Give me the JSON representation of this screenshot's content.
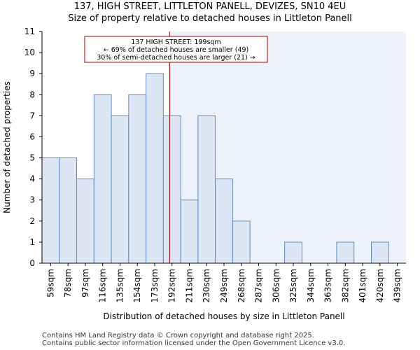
{
  "chart_data": {
    "type": "bar",
    "title": "137, HIGH STREET, LITTLETON PANELL, DEVIZES, SN10 4EU",
    "subtitle": "Size of property relative to detached houses in Littleton Panell",
    "xlabel": "Distribution of detached houses by size in Littleton Panell",
    "ylabel": "Number of detached properties",
    "ylim": [
      0,
      11
    ],
    "yticks": [
      0,
      1,
      2,
      3,
      4,
      5,
      6,
      7,
      8,
      9,
      10,
      11
    ],
    "categories": [
      "59sqm",
      "78sqm",
      "97sqm",
      "116sqm",
      "135sqm",
      "154sqm",
      "173sqm",
      "192sqm",
      "211sqm",
      "230sqm",
      "249sqm",
      "268sqm",
      "287sqm",
      "306sqm",
      "325sqm",
      "344sqm",
      "363sqm",
      "382sqm",
      "401sqm",
      "420sqm",
      "439sqm"
    ],
    "values": [
      5,
      5,
      4,
      8,
      7,
      8,
      9,
      7,
      3,
      7,
      4,
      2,
      0,
      0,
      1,
      0,
      0,
      1,
      0,
      1,
      0
    ],
    "bin_edges_sqm": [
      59,
      78,
      97,
      116,
      135,
      154,
      173,
      192,
      211,
      230,
      249,
      268,
      287,
      306,
      325,
      344,
      363,
      382,
      401,
      420,
      439
    ],
    "marker": {
      "value_sqm": 199,
      "label_line1": "137 HIGH STREET: 199sqm",
      "label_line2": "← 69% of detached houses are smaller (49)",
      "label_line3": "30% of semi-detached houses are larger (21) →"
    },
    "colors": {
      "bar_fill": "#dce6f4",
      "bar_stroke": "#5b8dc9",
      "shade_right": "#eef2fa",
      "marker": "#aa0000"
    }
  },
  "footer": {
    "line1": "Contains HM Land Registry data © Crown copyright and database right 2025.",
    "line2": "Contains public sector information licensed under the Open Government Licence v3.0."
  }
}
